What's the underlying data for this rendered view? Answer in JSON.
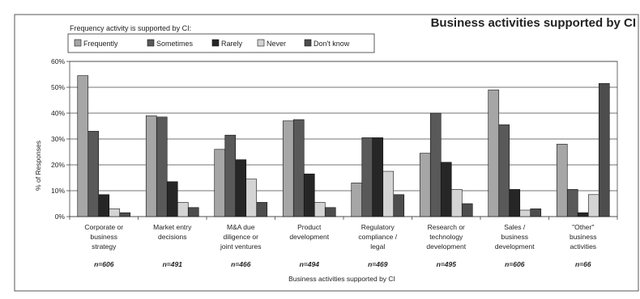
{
  "chart_data": {
    "type": "bar",
    "title": "Business activities supported by CI",
    "legend_title": "Frequency activity is supported by CI:",
    "legend_position": "top-left",
    "xlabel": "Business activities supported by CI",
    "ylabel": "% of Responses",
    "ylim": [
      0,
      60
    ],
    "yticks": [
      "0%",
      "10%",
      "20%",
      "30%",
      "40%",
      "50%",
      "60%"
    ],
    "grid": true,
    "categories": [
      [
        "Corporate or",
        "business",
        "strategy"
      ],
      [
        "Market entry",
        "decisions"
      ],
      [
        "M&A due",
        "diligence or",
        "joint ventures"
      ],
      [
        "Product",
        "development"
      ],
      [
        "Regulatory",
        "compliance /",
        "legal"
      ],
      [
        "Research or",
        "technology",
        "development"
      ],
      [
        "Sales /",
        "business",
        "development"
      ],
      [
        "\"Other\"",
        "business",
        "activities"
      ]
    ],
    "n_labels": [
      "n=606",
      "n=491",
      "n=466",
      "n=494",
      "n=469",
      "n=495",
      "n=606",
      "n=66"
    ],
    "series": [
      {
        "name": "Frequently",
        "color": "#a6a6a6",
        "values": [
          54.5,
          39,
          26,
          37,
          13,
          24.5,
          49,
          28
        ]
      },
      {
        "name": "Sometimes",
        "color": "#595959",
        "values": [
          33,
          38.5,
          31.5,
          37.5,
          30.5,
          40,
          35.5,
          10.5
        ]
      },
      {
        "name": "Rarely",
        "color": "#262626",
        "values": [
          8.5,
          13.5,
          22,
          16.5,
          30.5,
          21,
          10.5,
          1.5
        ]
      },
      {
        "name": "Never",
        "color": "#d4d4d4",
        "values": [
          3,
          5.5,
          14.5,
          5.5,
          17.5,
          10.5,
          2.5,
          8.5
        ]
      },
      {
        "name": "Don't know",
        "color": "#4d4d4d",
        "values": [
          1.5,
          3.5,
          5.5,
          3.5,
          8.5,
          5,
          3,
          51.5
        ]
      }
    ]
  }
}
